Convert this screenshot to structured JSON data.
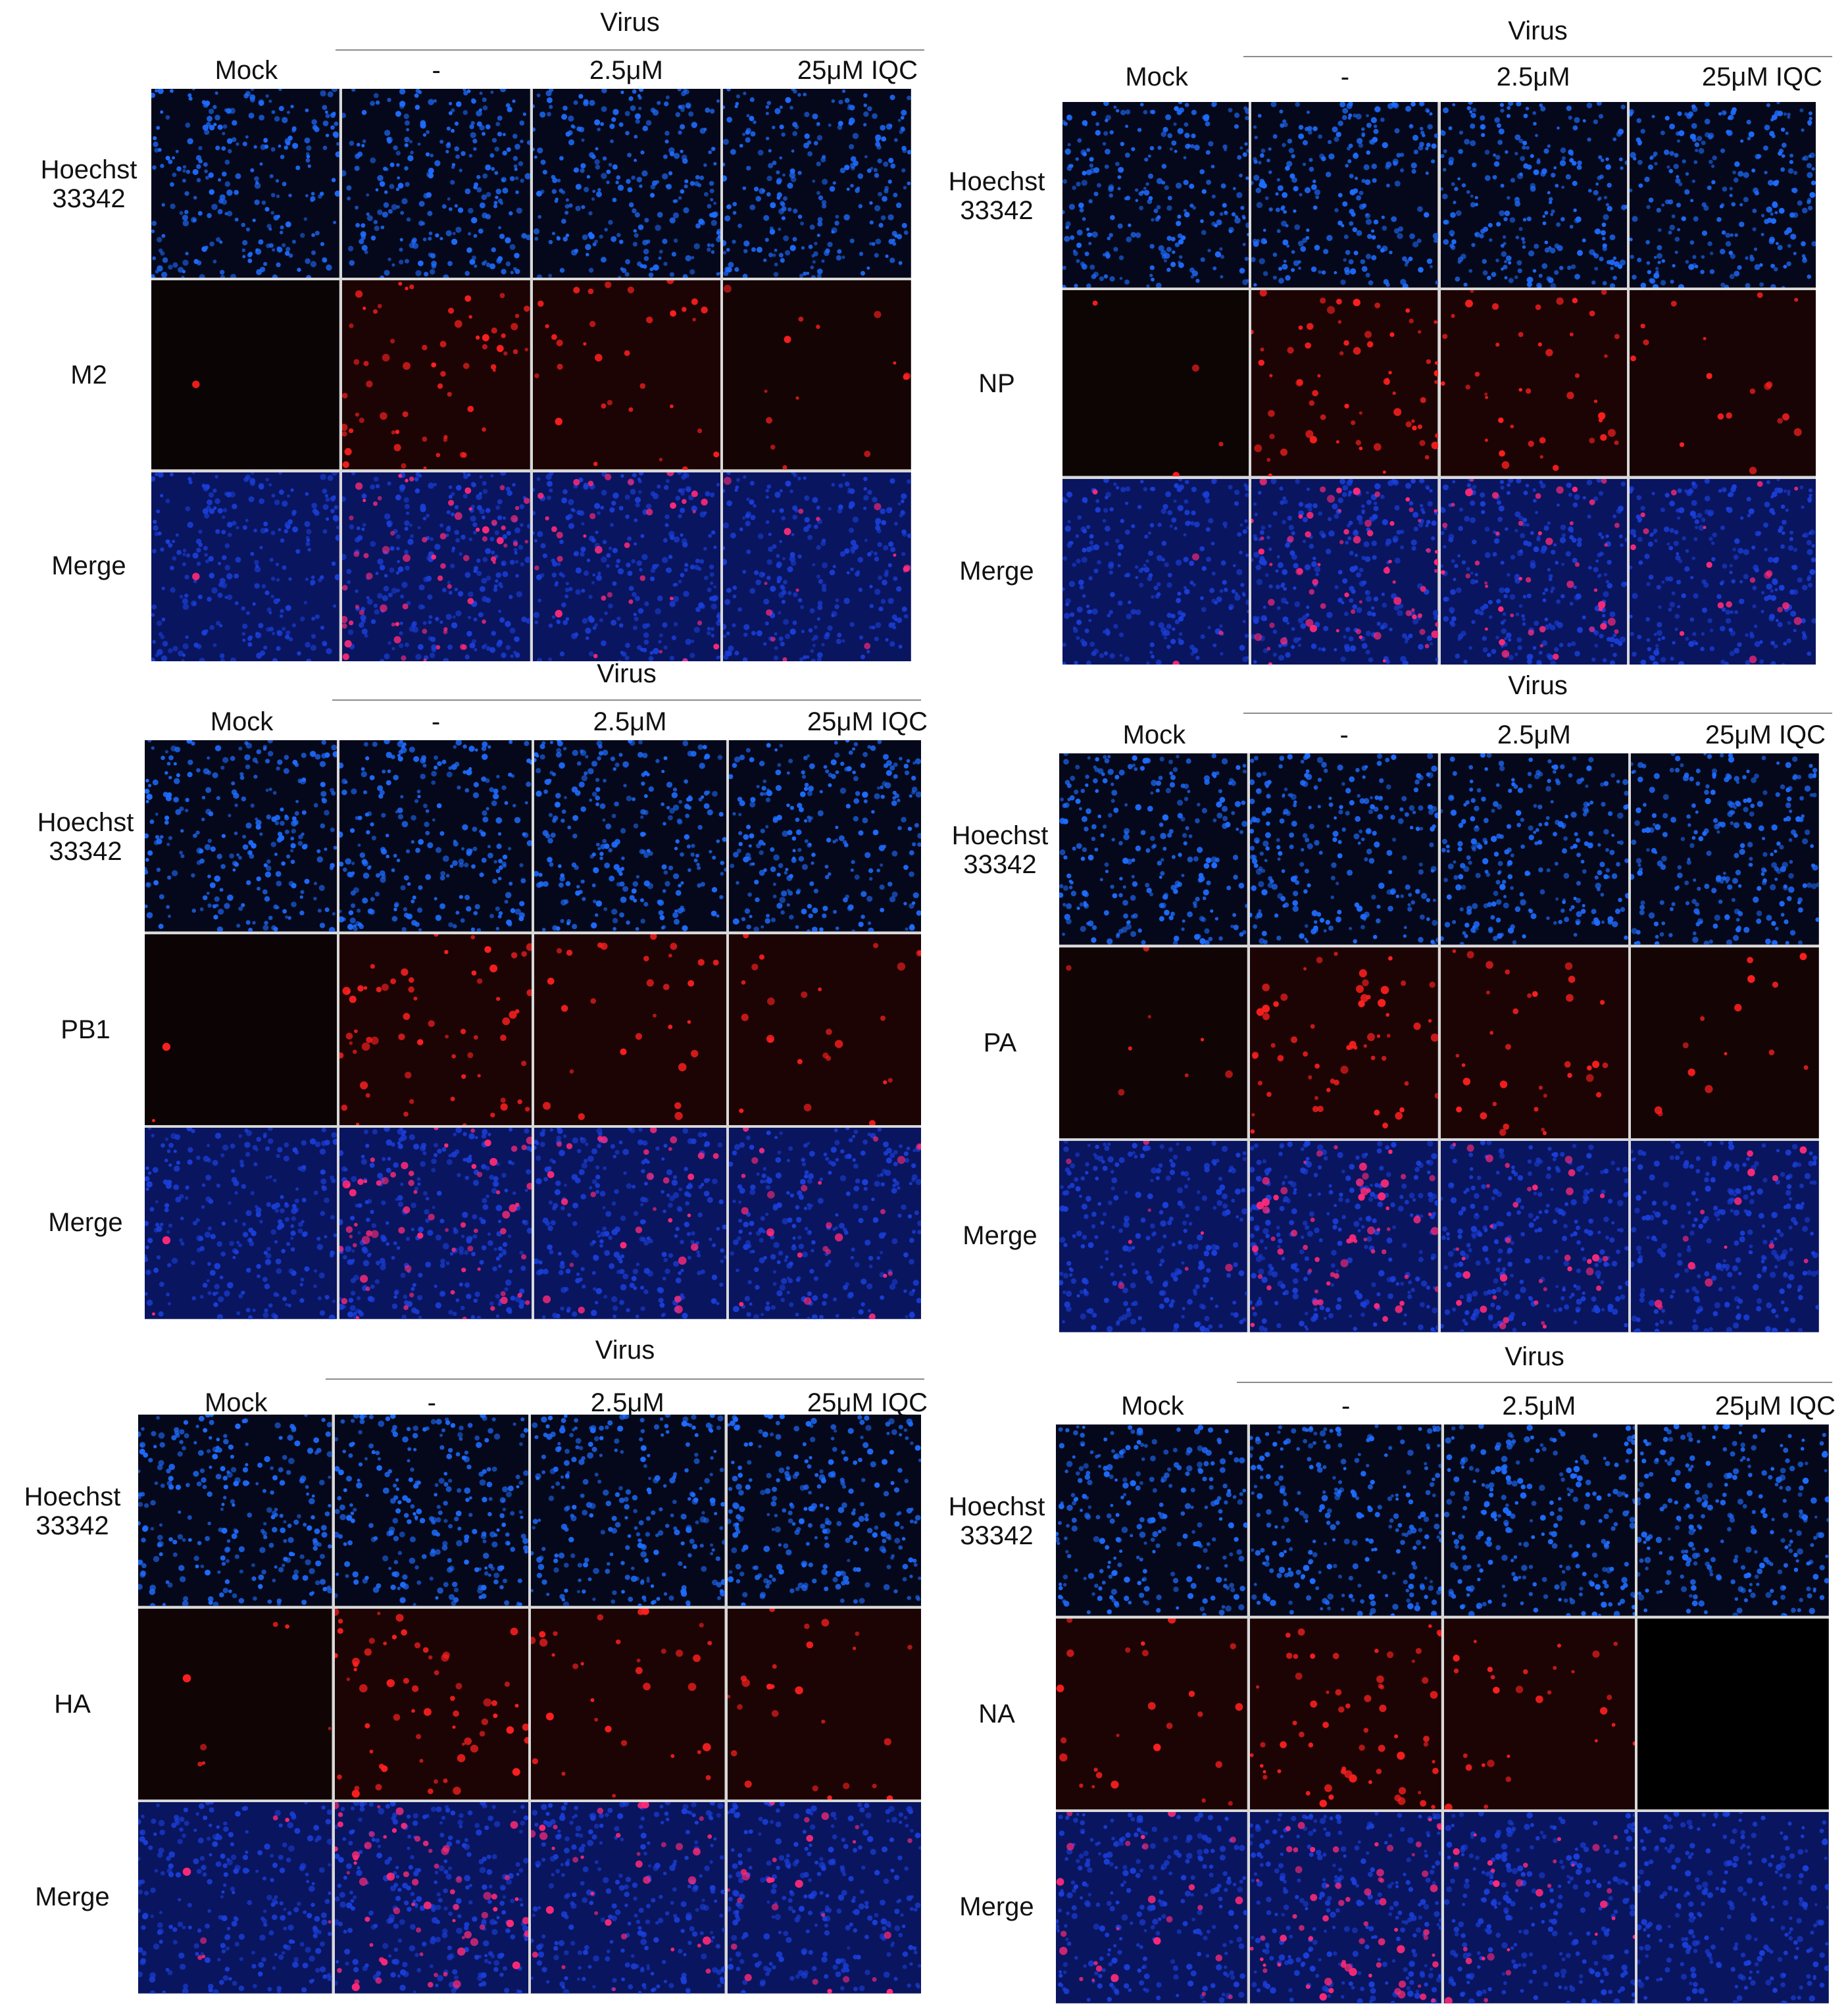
{
  "figure": {
    "panels": [
      {
        "id": "m2",
        "virus_label": "Virus",
        "columns": [
          "Mock",
          "-",
          "2.5μM",
          "25μM  IQC"
        ],
        "rows": [
          {
            "label": "Hoechst\n33342",
            "channel": "nuclei"
          },
          {
            "label": "M2",
            "channel": "marker"
          },
          {
            "label": "Merge",
            "channel": "merge"
          }
        ],
        "marker_intensity": [
          0.02,
          0.9,
          0.45,
          0.2
        ]
      },
      {
        "id": "np",
        "virus_label": "Virus",
        "columns": [
          "Mock",
          "-",
          "2.5μM",
          "25μM  IQC"
        ],
        "rows": [
          {
            "label": "Hoechst\n33342",
            "channel": "nuclei"
          },
          {
            "label": "NP",
            "channel": "marker"
          },
          {
            "label": "Merge",
            "channel": "merge"
          }
        ],
        "marker_intensity": [
          0.05,
          0.95,
          0.6,
          0.25
        ]
      },
      {
        "id": "pb1",
        "virus_label": "Virus",
        "columns": [
          "Mock",
          "-",
          "2.5μM",
          "25μM  IQC"
        ],
        "rows": [
          {
            "label": "Hoechst\n33342",
            "channel": "nuclei"
          },
          {
            "label": "PB1",
            "channel": "marker"
          },
          {
            "label": "Merge",
            "channel": "merge"
          }
        ],
        "marker_intensity": [
          0.03,
          0.9,
          0.4,
          0.35
        ]
      },
      {
        "id": "pa",
        "virus_label": "Virus",
        "columns": [
          "Mock",
          "-",
          "2.5μM",
          "25μM  IQC"
        ],
        "rows": [
          {
            "label": "Hoechst\n33342",
            "channel": "nuclei"
          },
          {
            "label": "PA",
            "channel": "marker"
          },
          {
            "label": "Merge",
            "channel": "merge"
          }
        ],
        "marker_intensity": [
          0.12,
          0.85,
          0.5,
          0.2
        ]
      },
      {
        "id": "ha",
        "virus_label": "Virus",
        "columns": [
          "Mock",
          "-",
          "2.5μM",
          "25μM  IQC"
        ],
        "rows": [
          {
            "label": "Hoechst\n33342",
            "channel": "nuclei"
          },
          {
            "label": "HA",
            "channel": "marker"
          },
          {
            "label": "Merge",
            "channel": "merge"
          }
        ],
        "marker_intensity": [
          0.1,
          0.9,
          0.45,
          0.35
        ]
      },
      {
        "id": "na",
        "virus_label": "Virus",
        "columns": [
          "Mock",
          "-",
          "2.5μM",
          "25μM  IQC"
        ],
        "rows": [
          {
            "label": "Hoechst\n33342",
            "channel": "nuclei"
          },
          {
            "label": "NA",
            "channel": "marker"
          },
          {
            "label": "Merge",
            "channel": "merge"
          }
        ],
        "marker_intensity": [
          0.35,
          0.9,
          0.4,
          0.0
        ]
      }
    ],
    "colors": {
      "nuclei": "#1e6cff",
      "nuclei_dim": "#1a3fd8",
      "marker": "#ff2020",
      "merge_marker": "#ff2a78",
      "background": "#05081a",
      "divider": "#d8d8d8"
    }
  }
}
